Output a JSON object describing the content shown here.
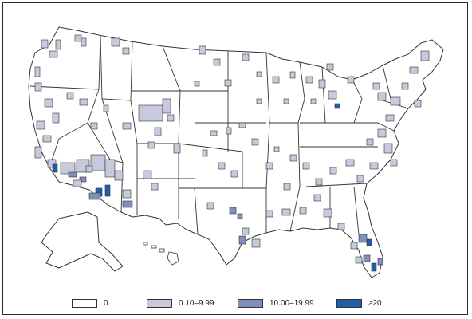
{
  "legend": {
    "items": [
      {
        "label": "0",
        "color": "#ffffff"
      },
      {
        "label": "0.10–9.99",
        "color": "#c7c9dd"
      },
      {
        "label": "10.00–19.99",
        "color": "#7f8fbe"
      },
      {
        "label": "≥20",
        "color": "#1f5ea8"
      }
    ]
  },
  "colors": {
    "outline": "#333333",
    "background": "#ffffff"
  }
}
